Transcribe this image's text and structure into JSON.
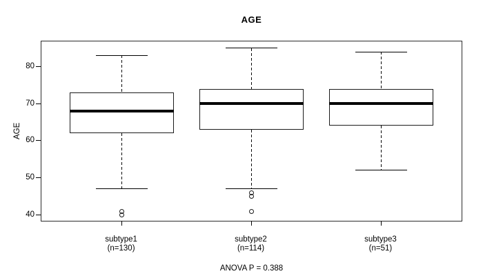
{
  "chart_data": {
    "type": "boxplot",
    "title": "AGE",
    "ylabel": "AGE",
    "xlabel": "",
    "ylim": [
      38.4,
      86.8
    ],
    "yticks": [
      40,
      50,
      60,
      70,
      80
    ],
    "grid": false,
    "legend": null,
    "annotation": "ANOVA P = 0.388",
    "groups": [
      {
        "label": "subtype1",
        "sublabel": "(n=130)",
        "n": 130,
        "whisker_low": 47,
        "q1": 62,
        "median": 68,
        "q3": 73,
        "whisker_high": 83,
        "outliers": [
          41,
          40
        ]
      },
      {
        "label": "subtype2",
        "sublabel": "(n=114)",
        "n": 114,
        "whisker_low": 47,
        "q1": 63,
        "median": 70,
        "q3": 74,
        "whisker_high": 85,
        "outliers": [
          46,
          45,
          41
        ]
      },
      {
        "label": "subtype3",
        "sublabel": "(n=51)",
        "n": 51,
        "whisker_low": 52,
        "q1": 64,
        "median": 70,
        "q3": 74,
        "whisker_high": 84,
        "outliers": []
      }
    ],
    "colors": {
      "stroke": "#000000",
      "box_fill": "#ffffff",
      "background": "#ffffff"
    }
  }
}
